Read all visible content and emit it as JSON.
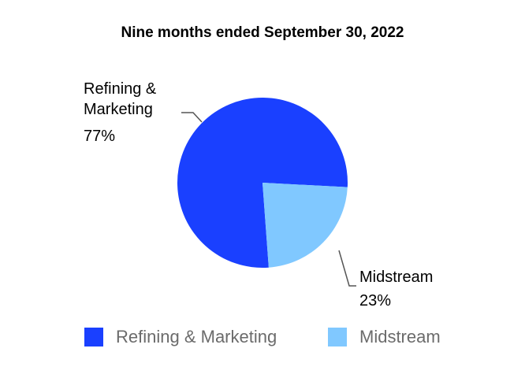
{
  "chart_data": {
    "type": "pie",
    "title": "Nine months ended September 30, 2022",
    "categories": [
      "Refining & Marketing",
      "Midstream"
    ],
    "values": [
      77,
      23
    ],
    "value_labels": [
      "77%",
      "23%"
    ],
    "colors": [
      "#1a40ff",
      "#80c8ff"
    ],
    "legend": "bottom"
  }
}
